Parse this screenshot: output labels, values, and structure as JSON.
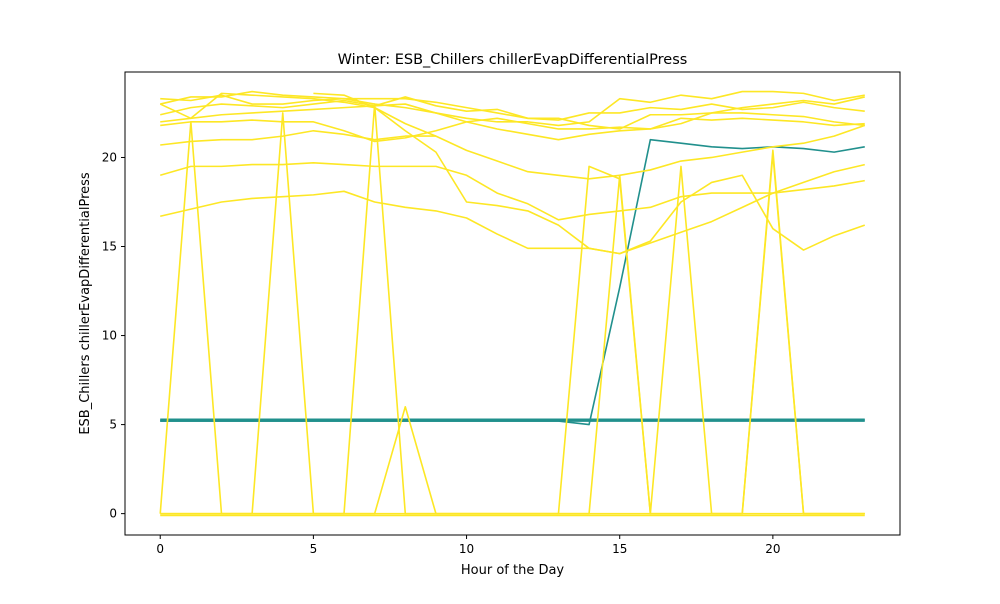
{
  "chart_data": {
    "type": "line",
    "title": "Winter: ESB_Chillers chillerEvapDifferentialPress",
    "xlabel": "Hour of the Day",
    "ylabel": "ESB_Chillers chillerEvapDifferentialPress",
    "xlim": [
      -1.15,
      24.15
    ],
    "ylim": [
      -1.2,
      24.8
    ],
    "xticks": [
      0,
      5,
      10,
      15,
      20
    ],
    "yticks": [
      0,
      5,
      10,
      15,
      20
    ],
    "grid": false,
    "legend": "none",
    "x": [
      0,
      1,
      2,
      3,
      4,
      5,
      6,
      7,
      8,
      9,
      10,
      11,
      12,
      13,
      14,
      15,
      16,
      17,
      18,
      19,
      20,
      21,
      22,
      23
    ],
    "series": [
      {
        "color": "#21908d",
        "values": [
          5.2,
          5.2,
          5.2,
          5.2,
          5.2,
          5.2,
          5.2,
          5.2,
          5.2,
          5.2,
          5.2,
          5.2,
          5.2,
          5.2,
          5.2,
          5.2,
          5.2,
          5.2,
          5.2,
          5.2,
          5.2,
          5.2,
          5.2,
          5.2
        ]
      },
      {
        "color": "#21908d",
        "values": [
          5.3,
          5.3,
          5.3,
          5.3,
          5.3,
          5.3,
          5.3,
          5.3,
          5.3,
          5.3,
          5.3,
          5.3,
          5.3,
          5.3,
          5.3,
          5.3,
          5.3,
          5.3,
          5.3,
          5.3,
          5.3,
          5.3,
          5.3,
          5.3
        ]
      },
      {
        "color": "#21908d",
        "values": [
          5.25,
          5.25,
          5.25,
          5.25,
          5.25,
          5.25,
          5.25,
          5.25,
          5.25,
          5.25,
          5.25,
          5.25,
          5.25,
          5.25,
          5.25,
          5.25,
          5.25,
          5.25,
          5.25,
          5.25,
          5.25,
          5.25,
          5.25,
          5.25
        ]
      },
      {
        "color": "#21908d",
        "values": [
          5.2,
          5.2,
          5.2,
          5.2,
          5.2,
          5.2,
          5.2,
          5.2,
          5.2,
          5.2,
          5.2,
          5.2,
          5.2,
          5.2,
          5.0,
          12.7,
          21.0,
          20.8,
          20.6,
          20.5,
          20.6,
          20.5,
          20.3,
          20.6
        ]
      },
      {
        "color": "#fde725",
        "values": [
          23.3,
          23.2,
          23.5,
          23.0,
          23.0,
          23.2,
          23.3,
          23.0,
          22.8,
          22.5,
          22.2,
          22.0,
          22.0,
          21.8,
          22.0,
          23.3,
          23.1,
          23.5,
          23.3,
          23.7,
          23.7,
          23.6,
          23.2,
          23.5
        ]
      },
      {
        "color": "#fde725",
        "values": [
          22.4,
          22.8,
          23.0,
          22.9,
          22.8,
          23.0,
          23.2,
          22.9,
          23.4,
          22.9,
          22.6,
          22.7,
          22.2,
          22.1,
          22.5,
          22.5,
          22.8,
          22.7,
          23.0,
          22.7,
          22.8,
          23.1,
          22.8,
          22.6
        ]
      },
      {
        "color": "#fde725",
        "values": [
          23.0,
          23.4,
          23.4,
          23.7,
          23.5,
          23.4,
          23.3,
          23.3,
          23.3,
          23.1,
          22.8,
          22.5,
          22.2,
          22.2,
          21.8,
          21.6,
          22.4,
          22.4,
          22.5,
          22.8,
          23.0,
          23.2,
          23.0,
          23.4
        ]
      },
      {
        "color": "#fde725",
        "values": [
          22.0,
          22.2,
          22.4,
          22.5,
          22.6,
          22.7,
          22.8,
          22.9,
          23.0,
          22.5,
          22.0,
          21.6,
          21.3,
          21.0,
          21.3,
          21.5,
          21.6,
          22.2,
          22.1,
          22.2,
          22.1,
          22.0,
          21.8,
          21.9
        ]
      },
      {
        "color": "#fde725",
        "values": [
          21.8,
          22.0,
          22.0,
          22.1,
          22.0,
          22.0,
          21.5,
          20.9,
          21.1,
          21.5,
          22.0,
          22.2,
          21.9,
          21.6,
          21.6,
          21.7,
          21.6,
          21.9,
          22.5,
          22.5,
          22.4,
          22.3,
          22.0,
          21.8
        ]
      },
      {
        "color": "#fde725",
        "values": [
          20.7,
          20.9,
          21.0,
          21.0,
          21.2,
          21.5,
          21.3,
          21.0,
          21.2,
          21.2,
          null,
          null,
          null,
          null,
          null,
          null,
          null,
          null,
          null,
          null,
          null,
          null,
          null,
          null
        ]
      },
      {
        "color": "#fde725",
        "values": [
          null,
          null,
          null,
          null,
          null,
          23.6,
          23.5,
          22.8,
          21.9,
          21.2,
          20.4,
          19.8,
          19.2,
          19.0,
          18.8,
          19.0,
          19.3,
          19.8,
          20.0,
          20.3,
          20.6,
          20.8,
          21.2,
          21.8
        ]
      },
      {
        "color": "#fde725",
        "values": [
          19.0,
          19.5,
          19.5,
          19.6,
          19.6,
          19.7,
          19.6,
          19.5,
          19.5,
          19.5,
          19.0,
          18.0,
          17.4,
          16.5,
          16.8,
          17.0,
          17.2,
          17.8,
          18.0,
          18.0,
          18.0,
          18.2,
          18.4,
          18.7
        ]
      },
      {
        "color": "#fde725",
        "values": [
          16.7,
          17.1,
          17.5,
          17.7,
          17.8,
          17.9,
          18.1,
          17.5,
          17.2,
          17.0,
          16.6,
          15.7,
          14.9,
          14.9,
          14.9,
          14.6,
          15.3,
          17.5,
          18.6,
          19.0,
          16.0,
          14.8,
          15.6,
          16.2
        ]
      },
      {
        "color": "#fde725",
        "values": [
          23.0,
          22.2,
          23.6,
          23.5,
          23.4,
          23.3,
          23.1,
          22.8,
          21.5,
          20.3,
          17.5,
          17.3,
          17.0,
          16.2,
          14.9,
          14.6,
          15.2,
          15.8,
          16.4,
          17.2,
          18.0,
          18.6,
          19.2,
          19.6
        ]
      },
      {
        "color": "#fde725",
        "values": [
          0.0,
          22.0,
          0.0,
          0.0,
          0.0,
          0.0,
          0.0,
          23.0,
          0.0,
          0.0,
          0.0,
          0.0,
          0.0,
          0.0,
          0.0,
          0.0,
          0.0,
          0.0,
          0.0,
          0.0,
          20.2,
          0.0,
          0.0,
          0.0
        ]
      },
      {
        "color": "#fde725",
        "values": [
          0.0,
          0.0,
          0.0,
          0.0,
          22.5,
          0.0,
          0.0,
          0.0,
          6.0,
          0.0,
          0.0,
          0.0,
          0.0,
          0.0,
          0.0,
          19.0,
          0.0,
          19.5,
          0.0,
          0.0,
          0.0,
          0.0,
          0.0,
          0.0
        ]
      },
      {
        "color": "#fde725",
        "values": [
          0.0,
          0.0,
          0.0,
          0.0,
          0.0,
          0.0,
          0.0,
          0.0,
          0.0,
          0.0,
          0.0,
          0.0,
          0.0,
          0.0,
          19.5,
          18.8,
          0.0,
          0.0,
          0.0,
          0.0,
          20.4,
          0.0,
          0.0,
          0.0
        ]
      },
      {
        "color": "#fde725",
        "values": [
          -0.1,
          -0.1,
          -0.1,
          -0.1,
          -0.1,
          -0.1,
          -0.1,
          -0.1,
          -0.1,
          -0.1,
          -0.1,
          -0.1,
          -0.1,
          -0.1,
          -0.1,
          -0.1,
          -0.1,
          -0.1,
          -0.1,
          -0.1,
          -0.1,
          -0.1,
          -0.1,
          -0.1
        ]
      }
    ]
  }
}
